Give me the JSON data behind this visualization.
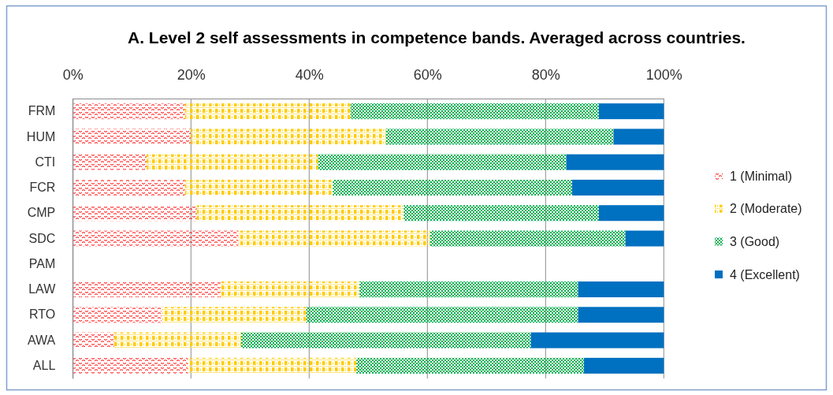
{
  "chart_data": {
    "type": "bar",
    "orientation": "horizontal",
    "stacked": true,
    "title": "A. Level 2 self assessments in competence bands. Averaged across countries.",
    "categories": [
      "FRM",
      "HUM",
      "CTI",
      "FCR",
      "CMP",
      "SDC",
      "PAM",
      "LAW",
      "RTO",
      "AWA",
      "ALL"
    ],
    "series": [
      {
        "name": "1 (Minimal)",
        "color": "#ff0000",
        "values": [
          19,
          20,
          12.5,
          19,
          21,
          28,
          null,
          25,
          15,
          7,
          19.5
        ]
      },
      {
        "name": "2 (Moderate)",
        "color": "#ffcc00",
        "values": [
          28,
          33,
          29,
          25,
          35,
          32.5,
          null,
          23.5,
          24.5,
          21.5,
          28.5
        ]
      },
      {
        "name": "3 (Good)",
        "color": "#00b050",
        "values": [
          42,
          38.5,
          42,
          40.5,
          33,
          33,
          null,
          37,
          46,
          49,
          38.5
        ]
      },
      {
        "name": "4 (Excellent)",
        "color": "#0070c0",
        "values": [
          11,
          8.5,
          16.5,
          15.5,
          11,
          6.5,
          null,
          14.5,
          14.5,
          22.5,
          13.5
        ]
      }
    ],
    "xlim": [
      0,
      100
    ],
    "xticks": [
      {
        "value": 0,
        "label": "0%"
      },
      {
        "value": 20,
        "label": "20%"
      },
      {
        "value": 40,
        "label": "40%"
      },
      {
        "value": 60,
        "label": "60%"
      },
      {
        "value": 80,
        "label": "80%"
      },
      {
        "value": 100,
        "label": "100%"
      }
    ],
    "grid": "x",
    "legend": "right"
  }
}
